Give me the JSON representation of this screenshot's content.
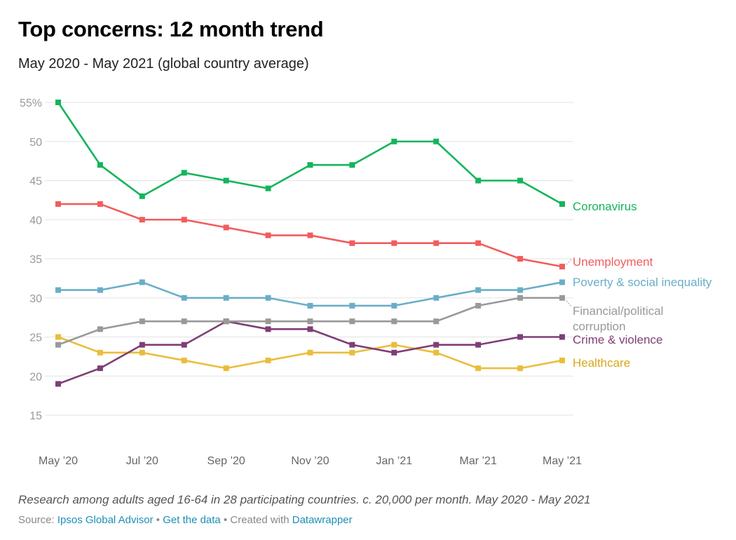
{
  "header": {
    "title": "Top concerns: 12 month trend",
    "subtitle": "May 2020 - May 2021 (global country average)"
  },
  "footer": {
    "note": "Research among adults aged 16-64 in 28 participating countries. c. 20,000 per month. May 2020 - May 2021",
    "source_prefix": "Source: ",
    "source_link": "Ipsos Global Advisor",
    "separator": " • ",
    "data_link": "Get the data",
    "created_prefix": "Created with ",
    "created_link": "Datawrapper"
  },
  "chart_data": {
    "type": "line",
    "title": "Top concerns: 12 month trend",
    "subtitle": "May 2020 - May 2021 (global country average)",
    "xlabel": "",
    "ylabel": "",
    "ylim": [
      15,
      55
    ],
    "yticks": [
      15,
      20,
      25,
      30,
      35,
      40,
      45,
      50,
      55
    ],
    "ytick_labels": [
      "15",
      "20",
      "25",
      "30",
      "35",
      "40",
      "45",
      "50",
      "55%"
    ],
    "x": [
      "May 2020",
      "Jun 2020",
      "Jul 2020",
      "Aug 2020",
      "Sep 2020",
      "Oct 2020",
      "Nov 2020",
      "Dec 2020",
      "Jan 2021",
      "Feb 2021",
      "Mar 2021",
      "Apr 2021",
      "May 2021"
    ],
    "xtick_index": [
      0,
      2,
      4,
      6,
      8,
      10,
      12
    ],
    "xtick_labels": [
      "May ’20",
      "Jul ’20",
      "Sep ’20",
      "Nov ’20",
      "Jan ’21",
      "Mar ’21",
      "May ’21"
    ],
    "grid": true,
    "legend": "direct labels at line ends (right)",
    "series": [
      {
        "name": "Coronavirus",
        "color": "#13b55a",
        "values": [
          55,
          47,
          43,
          46,
          45,
          44,
          47,
          47,
          50,
          50,
          45,
          45,
          42
        ]
      },
      {
        "name": "Unemployment",
        "color": "#f25c5c",
        "values": [
          42,
          42,
          40,
          40,
          39,
          38,
          38,
          37,
          37,
          37,
          37,
          35,
          34
        ]
      },
      {
        "name": "Poverty & social inequality",
        "color": "#6aaec6",
        "values": [
          31,
          31,
          32,
          30,
          30,
          30,
          29,
          29,
          29,
          30,
          31,
          31,
          32
        ]
      },
      {
        "name": "Financial/political corruption",
        "color": "#999999",
        "values": [
          24,
          26,
          27,
          27,
          27,
          27,
          27,
          27,
          27,
          27,
          29,
          30,
          30
        ]
      },
      {
        "name": "Crime & violence",
        "color": "#7e3f76",
        "values": [
          19,
          21,
          24,
          24,
          27,
          26,
          26,
          24,
          23,
          24,
          24,
          25,
          25
        ]
      },
      {
        "name": "Healthcare",
        "color": "#eabd3c",
        "values": [
          25,
          23,
          23,
          22,
          21,
          22,
          23,
          23,
          24,
          23,
          21,
          21,
          22
        ]
      }
    ],
    "label_colors": {
      "Healthcare": "#d9a71a"
    }
  }
}
